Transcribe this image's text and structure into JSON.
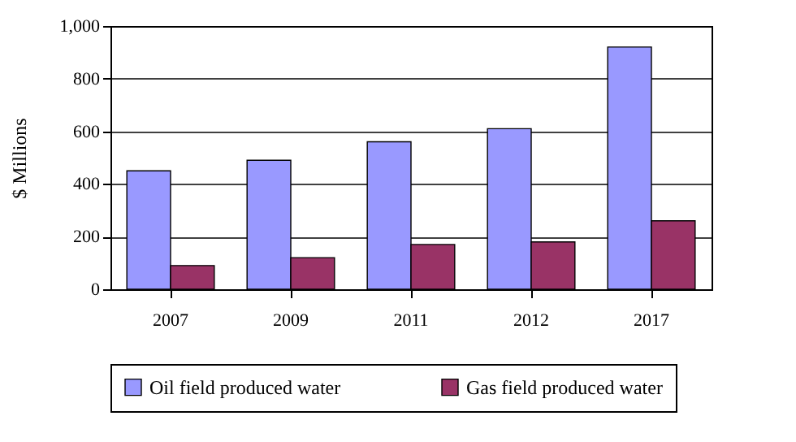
{
  "chart_data": {
    "type": "bar",
    "ylabel": "$ Millions",
    "categories": [
      "2007",
      "2009",
      "2011",
      "2012",
      "2017"
    ],
    "series": [
      {
        "name": "Oil field produced water",
        "color": "#9999ff",
        "values": [
          450,
          490,
          560,
          610,
          920
        ]
      },
      {
        "name": "Gas field produced water",
        "color": "#993366",
        "values": [
          90,
          120,
          170,
          180,
          260
        ]
      }
    ],
    "ylim": [
      0,
      1000
    ],
    "yticks": [
      0,
      200,
      400,
      600,
      800,
      {
        "value": 1000,
        "label": "1,000"
      }
    ],
    "grid": "y",
    "legend": "bottom"
  }
}
